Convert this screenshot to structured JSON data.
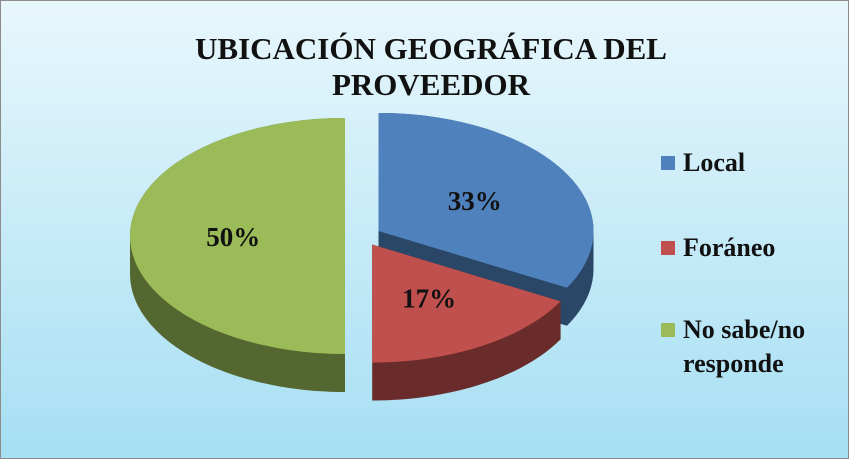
{
  "chart_data": {
    "type": "pie",
    "title": "UBICACIÓN GEOGRÁFICA DEL PROVEEDOR",
    "categories": [
      "Local",
      "Foráneo",
      "No sabe/no responde"
    ],
    "values": [
      33,
      17,
      50
    ],
    "value_labels": [
      "33%",
      "17%",
      "50%"
    ],
    "colors": [
      "#4f81bd",
      "#c0504d",
      "#9bbb59"
    ],
    "legend": "right"
  }
}
